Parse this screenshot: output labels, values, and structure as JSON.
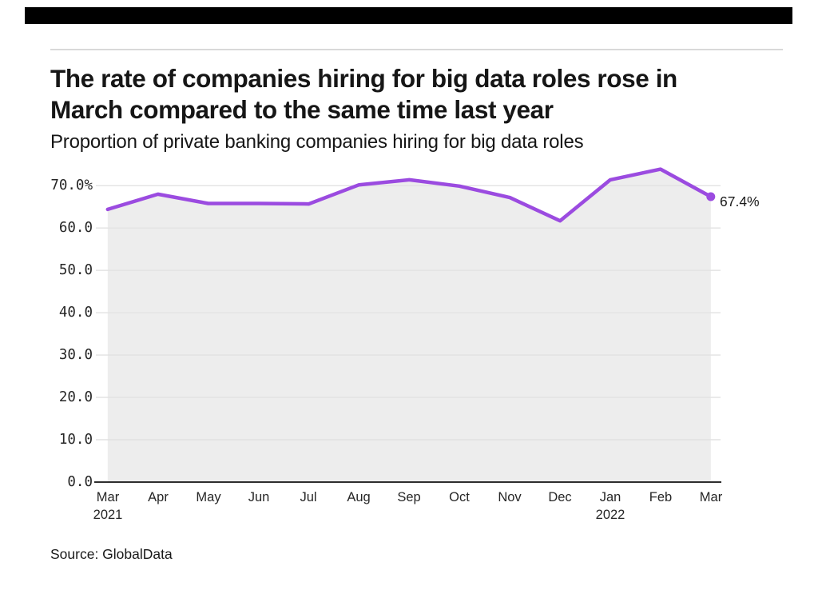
{
  "page": {
    "background": "#ffffff",
    "top_bar_color": "#000000",
    "divider_color": "#d9d9d9"
  },
  "header": {
    "title_line1": "The rate of companies hiring for big data roles rose in",
    "title_line2": "March compared to the same time last year",
    "subtitle": "Proportion of private banking companies hiring for big data roles"
  },
  "chart_data": {
    "type": "area",
    "title": "The rate of companies hiring for big data roles rose in March compared to the same time last year",
    "subtitle": "Proportion of private banking companies hiring for big data roles",
    "categories": [
      "Mar",
      "Apr",
      "May",
      "Jun",
      "Jul",
      "Aug",
      "Sep",
      "Oct",
      "Nov",
      "Dec",
      "Jan",
      "Feb",
      "Mar"
    ],
    "year_labels": [
      {
        "index": 0,
        "label": "2021"
      },
      {
        "index": 10,
        "label": "2022"
      }
    ],
    "values": [
      64.4,
      68.0,
      65.8,
      65.8,
      65.7,
      70.2,
      71.4,
      69.9,
      67.2,
      61.7,
      71.4,
      73.9,
      67.4
    ],
    "unit": "%",
    "ylim": [
      0,
      75
    ],
    "y_tick_values": [
      70,
      60,
      50,
      40,
      30,
      20,
      10,
      0
    ],
    "y_tick_labels": [
      "70.0%",
      "60.0",
      "50.0",
      "40.0",
      "30.0",
      "20.0",
      "10.0",
      "0.0"
    ],
    "grid": "horizontal",
    "legend_position": "none",
    "line_color": "#9b4be0",
    "marker_color": "#9b4be0",
    "fill_color": "#ededed",
    "gridline_color": "#e2e2e2",
    "axis_line_color": "#111111",
    "end_annotation": "67.4%"
  },
  "footer": {
    "source": "Source: GlobalData"
  }
}
